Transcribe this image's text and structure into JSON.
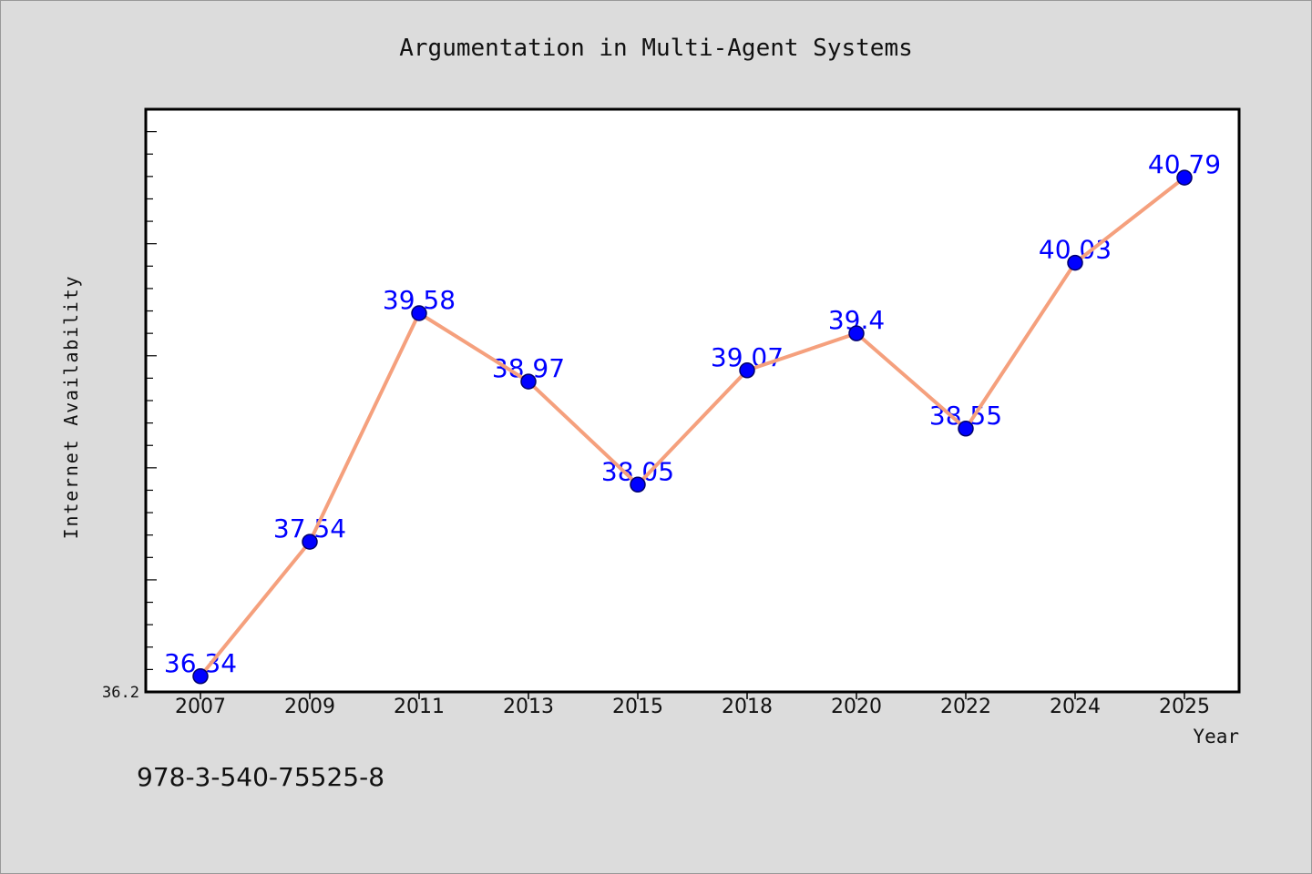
{
  "chart_data": {
    "type": "line",
    "title": "Argumentation in Multi-Agent Systems",
    "xlabel": "Year",
    "ylabel": "Internet Availability",
    "categories": [
      "2007",
      "2009",
      "2011",
      "2013",
      "2015",
      "2018",
      "2020",
      "2022",
      "2024",
      "2025"
    ],
    "series": [
      {
        "values": [
          36.34,
          37.54,
          39.58,
          38.97,
          38.05,
          39.07,
          39.4,
          38.55,
          40.03,
          40.79
        ]
      }
    ],
    "yticks": [
      36.2
    ],
    "ylim": [
      36.2,
      41.4
    ],
    "grid": false,
    "colors": {
      "background": "#dcdcdc",
      "plot_background": "#ffffff",
      "line": "#f5a07d",
      "marker": "#0000ff",
      "data_label": "#0000ff"
    }
  },
  "footer": "978-3-540-75525-8"
}
